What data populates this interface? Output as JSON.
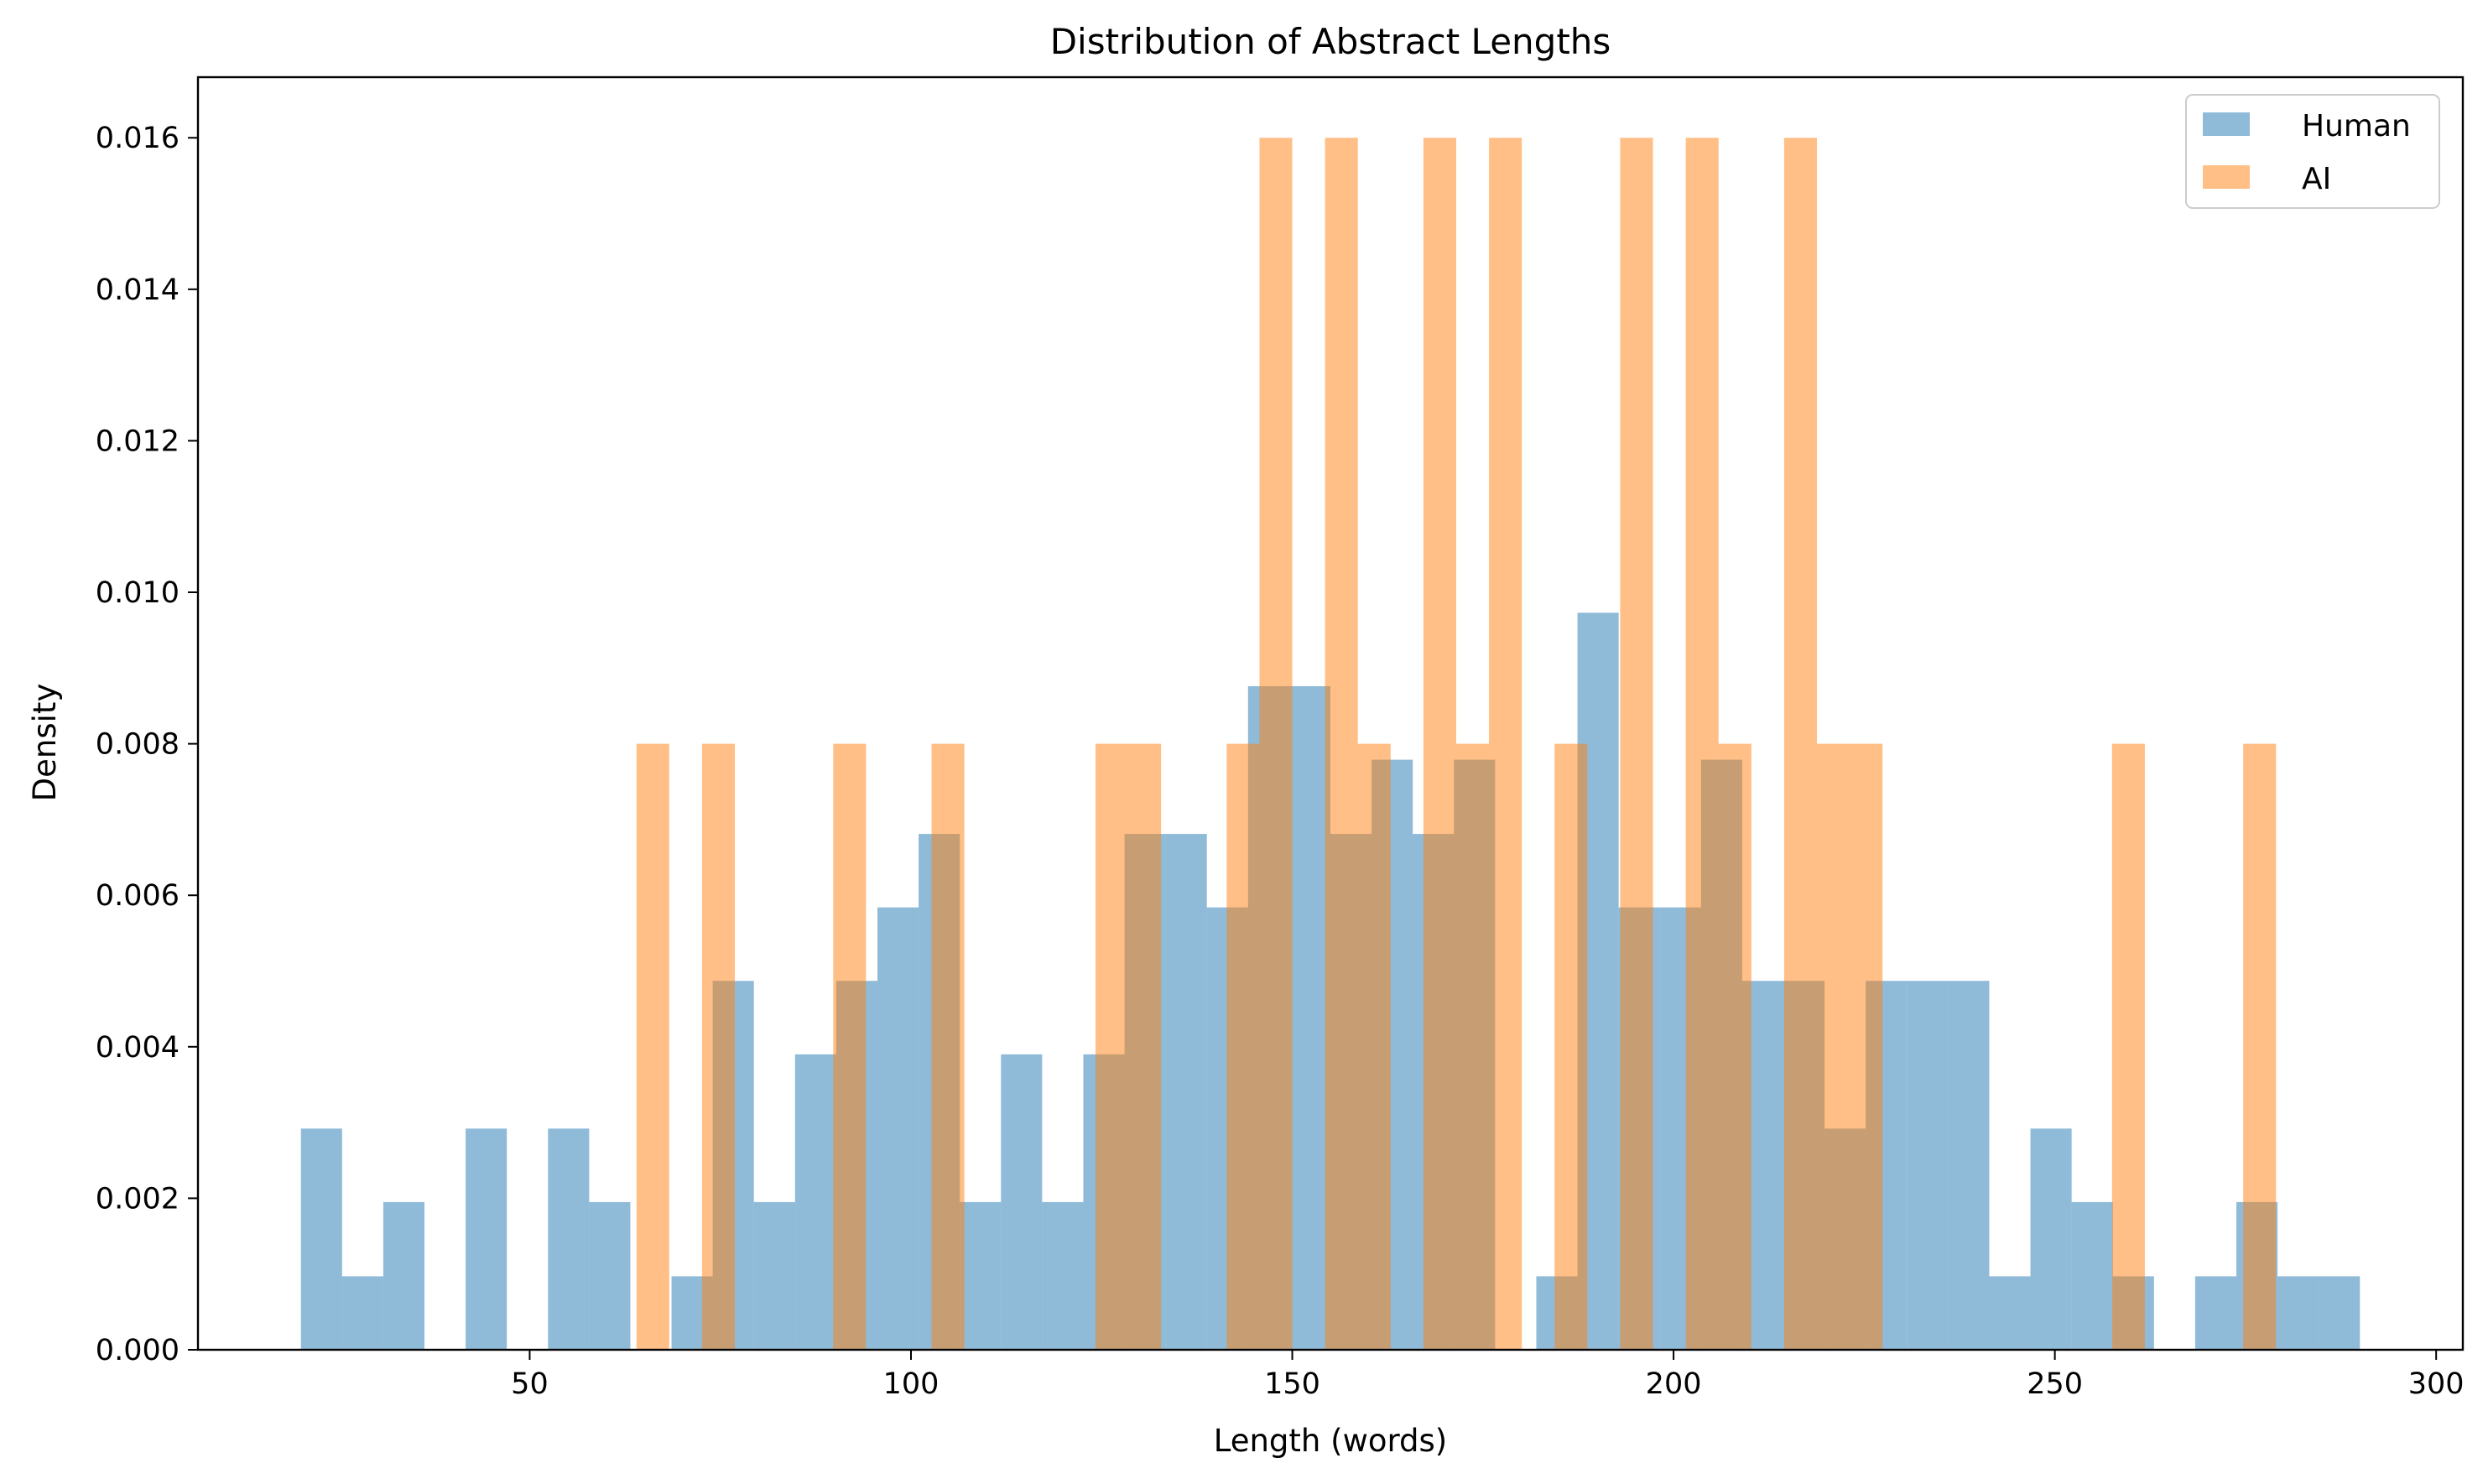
{
  "chart_data": {
    "type": "bar",
    "subtype": "histogram",
    "title": "Distribution of Abstract Lengths",
    "xlabel": "Length (words)",
    "ylabel": "Density",
    "xlim": [
      6.5,
      303.5
    ],
    "ylim": [
      0,
      0.0168
    ],
    "xticks": [
      50,
      100,
      150,
      200,
      250,
      300
    ],
    "yticks": [
      0.0,
      0.002,
      0.004,
      0.006,
      0.008,
      0.01,
      0.012,
      0.014,
      0.016
    ],
    "xtick_labels": [
      "50",
      "100",
      "150",
      "200",
      "250",
      "300"
    ],
    "ytick_labels": [
      "0.000",
      "0.002",
      "0.004",
      "0.006",
      "0.008",
      "0.010",
      "0.012",
      "0.014",
      "0.016"
    ],
    "grid": false,
    "legend": {
      "position": "top-right",
      "entries": [
        "Human",
        "AI"
      ]
    },
    "series": [
      {
        "name": "Human",
        "color": "#1f77b4",
        "opacity": 0.5,
        "bin_start": 20,
        "bin_width": 5.4,
        "values": [
          0.00292,
          0.00097,
          0.00195,
          0.0,
          0.00292,
          0.0,
          0.00292,
          0.00195,
          0.0,
          0.00097,
          0.00487,
          0.00195,
          0.0039,
          0.00487,
          0.00584,
          0.00681,
          0.00195,
          0.0039,
          0.00195,
          0.0039,
          0.00681,
          0.00681,
          0.00584,
          0.00876,
          0.00876,
          0.00681,
          0.00779,
          0.00681,
          0.00779,
          0.0,
          0.00097,
          0.00973,
          0.00584,
          0.00584,
          0.00779,
          0.00487,
          0.00487,
          0.00292,
          0.00487,
          0.00487,
          0.00487,
          0.00097,
          0.00292,
          0.00195,
          0.00097,
          0.0,
          0.00097,
          0.00195,
          0.00097,
          0.00097
        ]
      },
      {
        "name": "AI",
        "color": "#ff7f0e",
        "opacity": 0.5,
        "bin_start": 64,
        "bin_width": 4.3,
        "values": [
          0.008,
          0.0,
          0.008,
          0.0,
          0.0,
          0.0,
          0.008,
          0.0,
          0.0,
          0.008,
          0.0,
          0.0,
          0.0,
          0.0,
          0.008,
          0.008,
          0.0,
          0.0,
          0.008,
          0.016,
          0.0,
          0.016,
          0.008,
          0.0,
          0.016,
          0.008,
          0.016,
          0.0,
          0.008,
          0.0,
          0.016,
          0.0,
          0.016,
          0.008,
          0.0,
          0.016,
          0.008,
          0.008,
          0.0,
          0.0,
          0.0,
          0.0,
          0.0,
          0.0,
          0.0,
          0.008,
          0.0,
          0.0,
          0.0,
          0.008
        ]
      }
    ]
  }
}
